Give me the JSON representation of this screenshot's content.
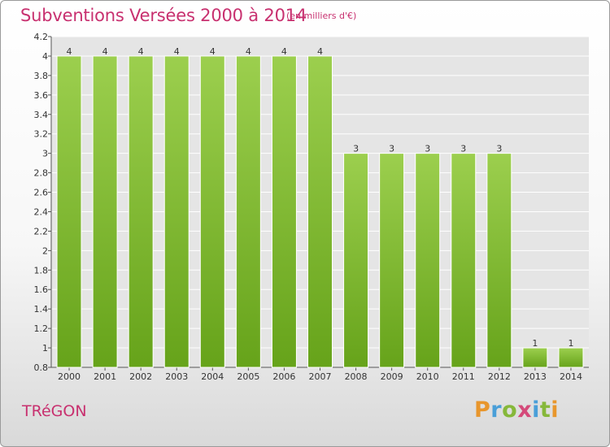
{
  "header": {
    "title": "Subventions Versées 2000 à 2014",
    "subtitle": "(en milliers d'€)"
  },
  "footer": {
    "commune": "TRéGON",
    "logo_letters": [
      "P",
      "r",
      "o",
      "x",
      "i",
      "t",
      "i"
    ]
  },
  "chart_data": {
    "type": "bar",
    "title": "Subventions Versées 2000 à 2014",
    "subtitle": "(en milliers d'€)",
    "categories": [
      "2000",
      "2001",
      "2002",
      "2003",
      "2004",
      "2005",
      "2006",
      "2007",
      "2008",
      "2009",
      "2010",
      "2011",
      "2012",
      "2013",
      "2014"
    ],
    "values": [
      4,
      4,
      4,
      4,
      4,
      4,
      4,
      4,
      3,
      3,
      3,
      3,
      3,
      1,
      1
    ],
    "data_labels": [
      "4",
      "4",
      "4",
      "4",
      "4",
      "4",
      "4",
      "4",
      "3",
      "3",
      "3",
      "3",
      "3",
      "1",
      "1"
    ],
    "ylim": [
      0.8,
      4.2
    ],
    "yticks": [
      0.8,
      1,
      1.2,
      1.4,
      1.6,
      1.8,
      2,
      2.2,
      2.4,
      2.6,
      2.8,
      3,
      3.2,
      3.4,
      3.6,
      3.8,
      4,
      4.2
    ],
    "ytick_labels": [
      "0.8",
      "1",
      "1.2",
      "1.4",
      "1.6",
      "1.8",
      "2",
      "2.2",
      "2.4",
      "2.6",
      "2.8",
      "3",
      "3.2",
      "3.4",
      "3.6",
      "3.8",
      "4",
      "4.2"
    ],
    "grid": true,
    "legend": "none",
    "colors": {
      "bar_top": "#9ccf4e",
      "bar_bottom": "#66a31a",
      "grid": "#ffffff",
      "plot_background": "#e5e5e5"
    }
  }
}
